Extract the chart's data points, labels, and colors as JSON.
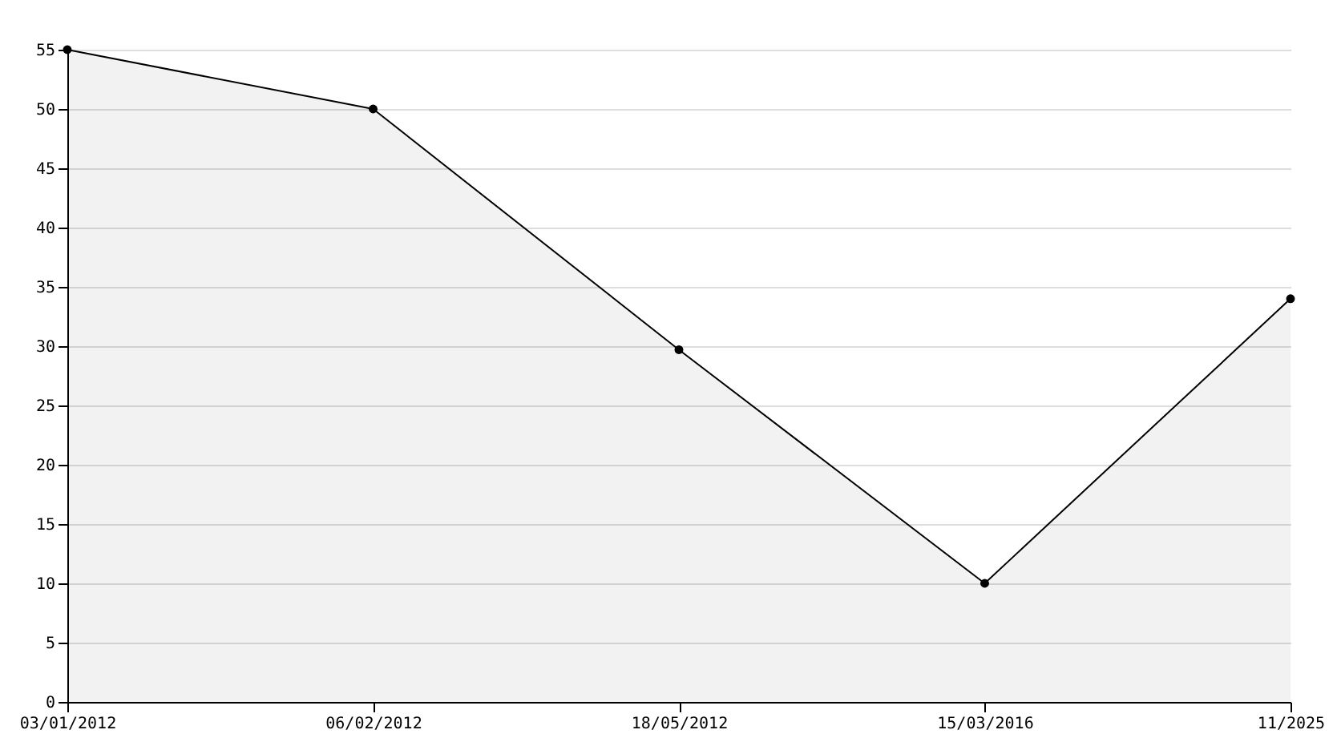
{
  "chart_data": {
    "type": "area",
    "categories": [
      "03/01/2012",
      "06/02/2012",
      "18/05/2012",
      "15/03/2016",
      "11/2025"
    ],
    "series": [
      {
        "color": "#000000",
        "values": [
          55,
          50,
          29.7,
          10,
          34
        ]
      }
    ],
    "ylim": [
      0,
      55
    ],
    "yticks": [
      0,
      5,
      10,
      15,
      20,
      25,
      30,
      35,
      40,
      45,
      50,
      55
    ],
    "grid": "y",
    "marker": "circle"
  }
}
